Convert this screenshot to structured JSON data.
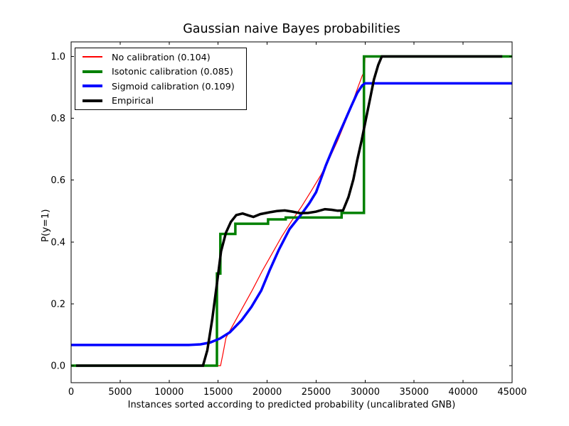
{
  "chart_data": {
    "type": "line",
    "title": "Gaussian naive Bayes probabilities",
    "xlabel": "Instances sorted according to predicted probability (uncalibrated GNB)",
    "ylabel": "P(y=1)",
    "xlim": [
      0,
      45000
    ],
    "ylim": [
      -0.055,
      1.047
    ],
    "x_ticks": [
      0,
      5000,
      10000,
      15000,
      20000,
      25000,
      30000,
      35000,
      40000,
      45000
    ],
    "x_tick_labels": [
      "0",
      "5000",
      "10000",
      "15000",
      "20000",
      "25000",
      "30000",
      "35000",
      "40000",
      "45000"
    ],
    "y_ticks": [
      0.0,
      0.2,
      0.4,
      0.6,
      0.8,
      1.0
    ],
    "y_tick_labels": [
      "0.0",
      "0.2",
      "0.4",
      "0.6",
      "0.8",
      "1.0"
    ],
    "grid": false,
    "legend_position": "upper left",
    "axis_color": "#000000",
    "background_color": "#ffffff",
    "series": [
      {
        "name": "No calibration (0.104)",
        "color": "#ff0000",
        "line_width": 1.2,
        "points": [
          [
            0,
            0
          ],
          [
            15250,
            0
          ],
          [
            15500,
            0.04
          ],
          [
            15800,
            0.09
          ],
          [
            16200,
            0.113
          ],
          [
            17400,
            0.182
          ],
          [
            18500,
            0.245
          ],
          [
            19530,
            0.308
          ],
          [
            20500,
            0.362
          ],
          [
            21500,
            0.418
          ],
          [
            22500,
            0.468
          ],
          [
            23500,
            0.514
          ],
          [
            24500,
            0.565
          ],
          [
            25500,
            0.617
          ],
          [
            26400,
            0.672
          ],
          [
            27200,
            0.728
          ],
          [
            28000,
            0.79
          ],
          [
            28700,
            0.85
          ],
          [
            29300,
            0.903
          ],
          [
            29700,
            0.937
          ],
          [
            29950,
            0.953
          ],
          [
            29990,
            1.0
          ],
          [
            45000,
            1.0
          ]
        ]
      },
      {
        "name": "Isotonic calibration (0.085)",
        "color": "#008000",
        "line_width": 3.5,
        "points": [
          [
            0,
            0
          ],
          [
            14880,
            0
          ],
          [
            14880,
            0.298
          ],
          [
            15230,
            0.298
          ],
          [
            15230,
            0.426
          ],
          [
            16760,
            0.426
          ],
          [
            16760,
            0.459
          ],
          [
            20100,
            0.459
          ],
          [
            20100,
            0.473
          ],
          [
            21900,
            0.473
          ],
          [
            21900,
            0.479
          ],
          [
            27600,
            0.479
          ],
          [
            27600,
            0.494
          ],
          [
            29880,
            0.494
          ],
          [
            29880,
            1.0
          ],
          [
            45000,
            1.0
          ]
        ]
      },
      {
        "name": "Sigmoid calibration (0.109)",
        "color": "#0000ff",
        "line_width": 3.5,
        "points": [
          [
            0,
            0.067
          ],
          [
            12000,
            0.067
          ],
          [
            13200,
            0.069
          ],
          [
            14200,
            0.075
          ],
          [
            15200,
            0.088
          ],
          [
            16200,
            0.108
          ],
          [
            17400,
            0.147
          ],
          [
            18400,
            0.19
          ],
          [
            19400,
            0.243
          ],
          [
            20250,
            0.308
          ],
          [
            21200,
            0.375
          ],
          [
            22300,
            0.442
          ],
          [
            23500,
            0.49
          ],
          [
            24300,
            0.525
          ],
          [
            25000,
            0.561
          ],
          [
            26000,
            0.648
          ],
          [
            27000,
            0.725
          ],
          [
            27800,
            0.782
          ],
          [
            28600,
            0.84
          ],
          [
            29200,
            0.882
          ],
          [
            29700,
            0.906
          ],
          [
            30000,
            0.913
          ],
          [
            45000,
            0.913
          ]
        ]
      },
      {
        "name": "Empirical",
        "color": "#000000",
        "line_width": 3.5,
        "points": [
          [
            500,
            0
          ],
          [
            13460,
            0
          ],
          [
            13900,
            0.05
          ],
          [
            14400,
            0.15
          ],
          [
            14900,
            0.27
          ],
          [
            15300,
            0.37
          ],
          [
            15800,
            0.43
          ],
          [
            16300,
            0.465
          ],
          [
            16850,
            0.487
          ],
          [
            17500,
            0.492
          ],
          [
            18100,
            0.486
          ],
          [
            18600,
            0.481
          ],
          [
            19300,
            0.49
          ],
          [
            20250,
            0.496
          ],
          [
            21000,
            0.5
          ],
          [
            21800,
            0.502
          ],
          [
            22600,
            0.498
          ],
          [
            23400,
            0.493
          ],
          [
            24200,
            0.494
          ],
          [
            25000,
            0.498
          ],
          [
            25900,
            0.506
          ],
          [
            26600,
            0.504
          ],
          [
            27200,
            0.501
          ],
          [
            27750,
            0.502
          ],
          [
            28300,
            0.545
          ],
          [
            28800,
            0.602
          ],
          [
            29200,
            0.665
          ],
          [
            29660,
            0.73
          ],
          [
            30100,
            0.8
          ],
          [
            30500,
            0.862
          ],
          [
            30900,
            0.925
          ],
          [
            31330,
            0.972
          ],
          [
            31700,
            1.0
          ],
          [
            44000,
            1.0
          ]
        ]
      }
    ]
  }
}
